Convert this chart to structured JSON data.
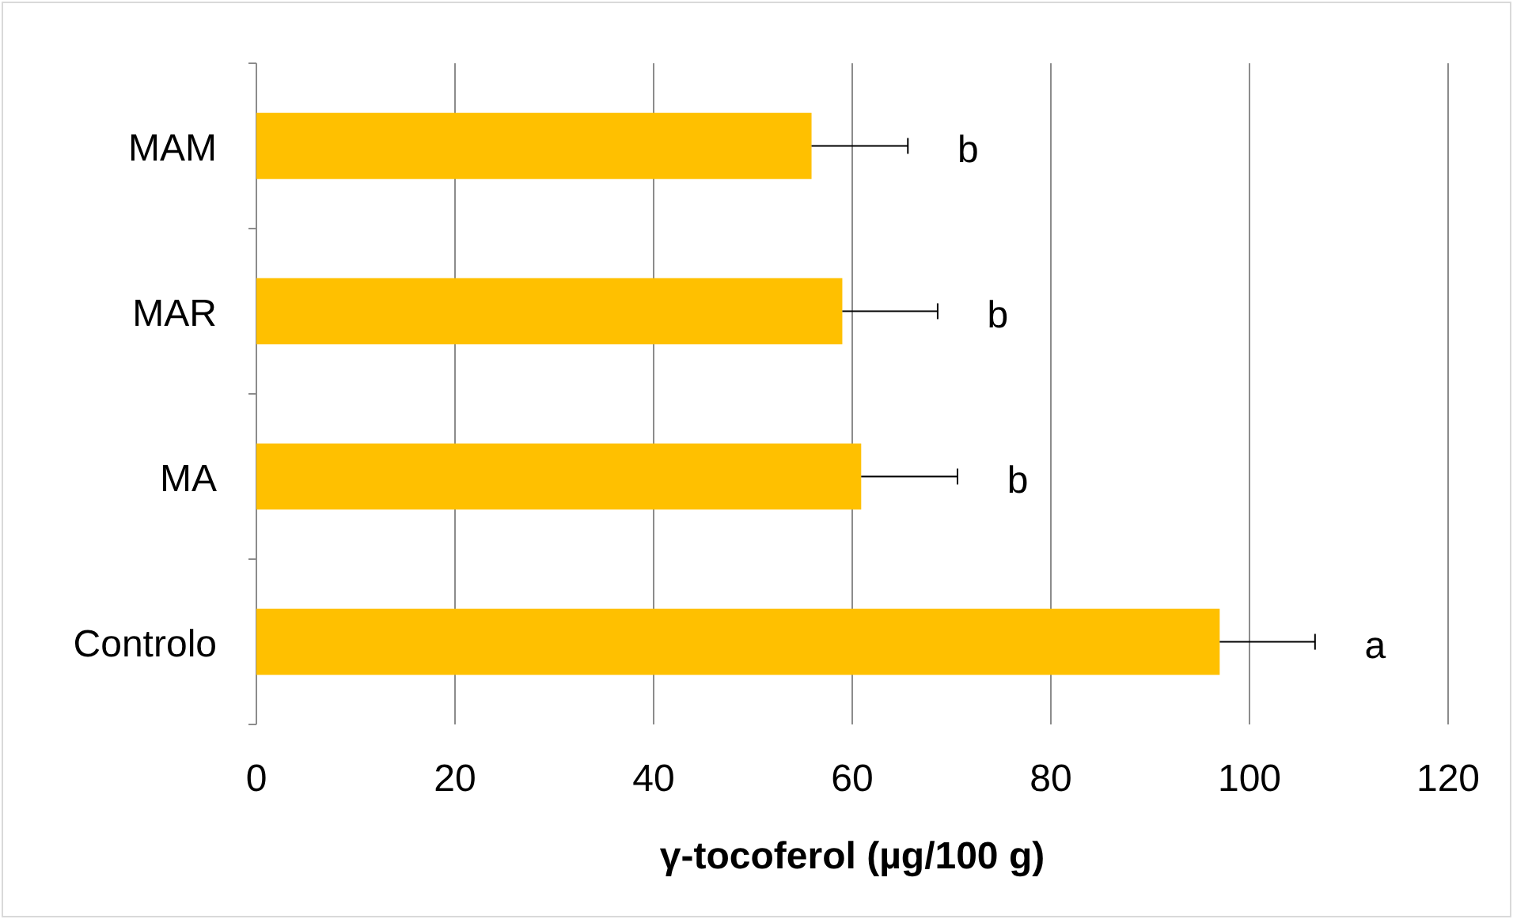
{
  "chart_data": {
    "type": "bar",
    "orientation": "horizontal",
    "xlabel": "γ-tocoferol (µg/100 g)",
    "categories": [
      "MAM",
      "MAR",
      "MA",
      "Controlo"
    ],
    "values": [
      55.9,
      59.0,
      60.9,
      97.0
    ],
    "errors": [
      9.7,
      9.6,
      9.7,
      9.6
    ],
    "color": "#ffc000",
    "xlim": [
      0,
      120
    ],
    "xticks": [
      0,
      20,
      40,
      60,
      80,
      100,
      120
    ],
    "grid": "x",
    "annotations": [
      "b",
      "b",
      "b",
      "a"
    ]
  }
}
